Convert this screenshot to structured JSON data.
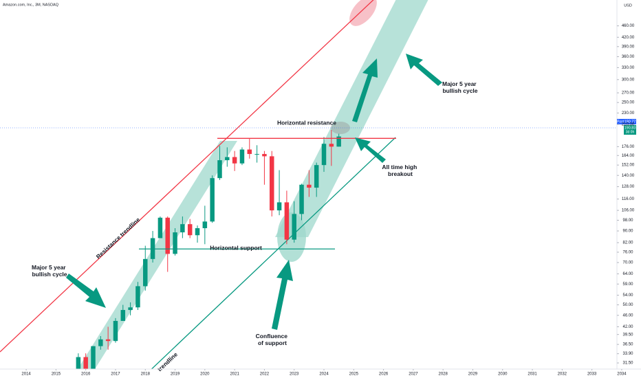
{
  "chart_data": {
    "type": "candlestick",
    "title": "Amazon.com, Inc., 3M, NASDAQ",
    "currency": "USD",
    "log_scale": true,
    "grid": false,
    "up_color": "#089981",
    "down_color": "#f23645",
    "x": [
      2015.75,
      2016.0,
      2016.25,
      2016.5,
      2016.75,
      2017.0,
      2017.25,
      2017.5,
      2017.75,
      2018.0,
      2018.25,
      2018.5,
      2018.75,
      2019.0,
      2019.25,
      2019.5,
      2019.75,
      2020.0,
      2020.25,
      2020.5,
      2020.75,
      2021.0,
      2021.25,
      2021.5,
      2021.75,
      2022.0,
      2022.25,
      2022.5,
      2022.75,
      2023.0,
      2023.25,
      2023.5,
      2023.75,
      2024.0,
      2024.25,
      2024.5
    ],
    "open": [
      30,
      33,
      30,
      36,
      38,
      37.5,
      44,
      48,
      49,
      58,
      72,
      85,
      100,
      75,
      89,
      95,
      87,
      92,
      97,
      137,
      158,
      162,
      154,
      172,
      166,
      166,
      163,
      106,
      113,
      84,
      103,
      130,
      127,
      152,
      180,
      176
    ],
    "high": [
      34,
      34,
      36,
      39,
      42,
      45,
      50,
      51,
      60,
      80,
      90,
      101,
      101,
      92,
      101,
      99,
      94,
      110,
      140,
      177,
      175,
      170,
      175,
      188,
      178,
      170,
      170,
      146,
      124,
      114,
      131,
      146,
      155,
      190,
      201,
      195
    ],
    "low": [
      28,
      24.5,
      29,
      35,
      35,
      37,
      44,
      46,
      48,
      56,
      70,
      85,
      65,
      74,
      85,
      85,
      82,
      81,
      96,
      135,
      150,
      145,
      152,
      160,
      155,
      130,
      101,
      102,
      81,
      82,
      98,
      118,
      118,
      144,
      151,
      176
    ],
    "close": [
      33,
      30,
      36,
      38,
      37.5,
      44,
      48,
      49,
      58,
      72,
      85,
      100,
      75,
      89,
      95,
      87,
      92,
      97,
      137,
      158,
      162,
      154,
      172,
      166,
      166,
      163,
      106,
      113,
      84,
      103,
      130,
      127,
      152,
      180,
      176,
      190.83
    ],
    "xlim": [
      2013.12,
      2033.84
    ],
    "xticks": [
      2014,
      2015,
      2016,
      2017,
      2018,
      2019,
      2020,
      2021,
      2022,
      2023,
      2024,
      2025,
      2026,
      2027,
      2028,
      2029,
      2030,
      2031,
      2032,
      2033,
      2034
    ],
    "ylim": [
      30,
      565
    ],
    "yticks": [
      {
        "value": 460,
        "label": "460.00"
      },
      {
        "value": 420,
        "label": "420.00"
      },
      {
        "value": 390,
        "label": "390.00"
      },
      {
        "value": 360,
        "label": "360.00"
      },
      {
        "value": 330,
        "label": "330.00"
      },
      {
        "value": 300,
        "label": "300.00"
      },
      {
        "value": 270,
        "label": "270.00"
      },
      {
        "value": 250,
        "label": "250.00"
      },
      {
        "value": 230,
        "label": "230.00"
      },
      {
        "value": 210,
        "label": "210.00"
      },
      {
        "value": 176,
        "label": "176.00"
      },
      {
        "value": 164,
        "label": "164.00"
      },
      {
        "value": 152,
        "label": "152.00"
      },
      {
        "value": 140,
        "label": "140.00"
      },
      {
        "value": 128,
        "label": "128.00"
      },
      {
        "value": 116,
        "label": "116.00"
      },
      {
        "value": 106,
        "label": "106.00"
      },
      {
        "value": 98,
        "label": "98.00"
      },
      {
        "value": 90,
        "label": "90.00"
      },
      {
        "value": 82,
        "label": "82.00"
      },
      {
        "value": 76,
        "label": "76.00"
      },
      {
        "value": 70,
        "label": "70.00"
      },
      {
        "value": 64,
        "label": "64.00"
      },
      {
        "value": 59,
        "label": "59.00"
      },
      {
        "value": 54,
        "label": "54.00"
      },
      {
        "value": 50,
        "label": "50.00"
      },
      {
        "value": 46,
        "label": "46.00"
      },
      {
        "value": 42,
        "label": "42.00"
      },
      {
        "value": 39.5,
        "label": "39.50"
      },
      {
        "value": 36.5,
        "label": "36.50"
      },
      {
        "value": 33.9,
        "label": "33.90"
      },
      {
        "value": 31.5,
        "label": "31.50"
      }
    ],
    "post_tag": "Post",
    "post_price": {
      "value": 190.77,
      "label": "190.77"
    },
    "last_price": {
      "value": 190.83,
      "label": "190.83"
    },
    "countdown": "3d 0h",
    "resistance_level": 188,
    "support_level": 78,
    "annotations": {
      "horizontal_resistance": "Horizontal resistance",
      "horizontal_support": "Horizontal support",
      "resistance_trendline": "Resistance trendline",
      "support_trendline": "trendline",
      "left_cycle": [
        "Major 5 year",
        "bullish cycle"
      ],
      "right_cycle": [
        "Major 5 year",
        "bullish cycle"
      ],
      "breakout": [
        "All time high",
        "breakout"
      ],
      "confluence": [
        "Confluence",
        "of support"
      ]
    }
  }
}
